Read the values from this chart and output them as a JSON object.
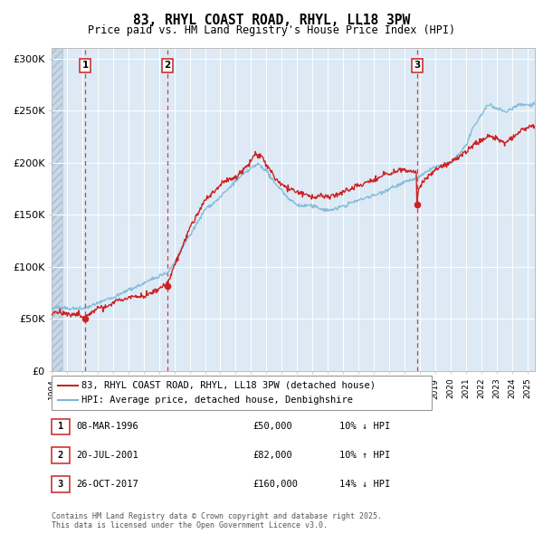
{
  "title": "83, RHYL COAST ROAD, RHYL, LL18 3PW",
  "subtitle": "Price paid vs. HM Land Registry's House Price Index (HPI)",
  "hpi_color": "#7db8d8",
  "price_color": "#cc2222",
  "vline_color": "#cc2222",
  "background_chart": "#ddeaf5",
  "background_hatch_color": "#c8d8e8",
  "transactions": [
    {
      "num": 1,
      "date_x": 1996.19,
      "price": 50000,
      "label": "08-MAR-1996",
      "amount": "£50,000",
      "pct": "10%",
      "dir": "↓ HPI"
    },
    {
      "num": 2,
      "date_x": 2001.55,
      "price": 82000,
      "label": "20-JUL-2001",
      "amount": "£82,000",
      "pct": "10%",
      "dir": "↑ HPI"
    },
    {
      "num": 3,
      "date_x": 2017.82,
      "price": 160000,
      "label": "26-OCT-2017",
      "amount": "£160,000",
      "pct": "14%",
      "dir": "↓ HPI"
    }
  ],
  "xlim": [
    1994.0,
    2025.5
  ],
  "ylim": [
    0,
    310000
  ],
  "yticks": [
    0,
    50000,
    100000,
    150000,
    200000,
    250000,
    300000
  ],
  "ytick_labels": [
    "£0",
    "£50K",
    "£100K",
    "£150K",
    "£200K",
    "£250K",
    "£300K"
  ],
  "footer": "Contains HM Land Registry data © Crown copyright and database right 2025.\nThis data is licensed under the Open Government Licence v3.0.",
  "legend_line1": "83, RHYL COAST ROAD, RHYL, LL18 3PW (detached house)",
  "legend_line2": "HPI: Average price, detached house, Denbighshire",
  "hatch_end": 1994.7
}
